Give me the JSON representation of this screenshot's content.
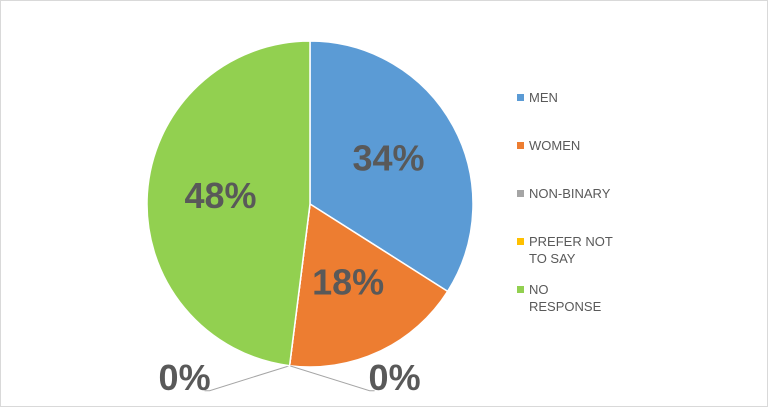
{
  "chart_data": {
    "type": "pie",
    "categories": [
      "MEN",
      "WOMEN",
      "NON-BINARY",
      "PREFER NOT TO SAY",
      "NO RESPONSE"
    ],
    "values": [
      34,
      18,
      0,
      0,
      48
    ],
    "value_labels": [
      "34%",
      "18%",
      "0%",
      "0%",
      "48%"
    ],
    "colors": [
      "#5b9bd5",
      "#ed7d31",
      "#a5a5a5",
      "#ffc000",
      "#92d050"
    ],
    "legend": "right"
  }
}
